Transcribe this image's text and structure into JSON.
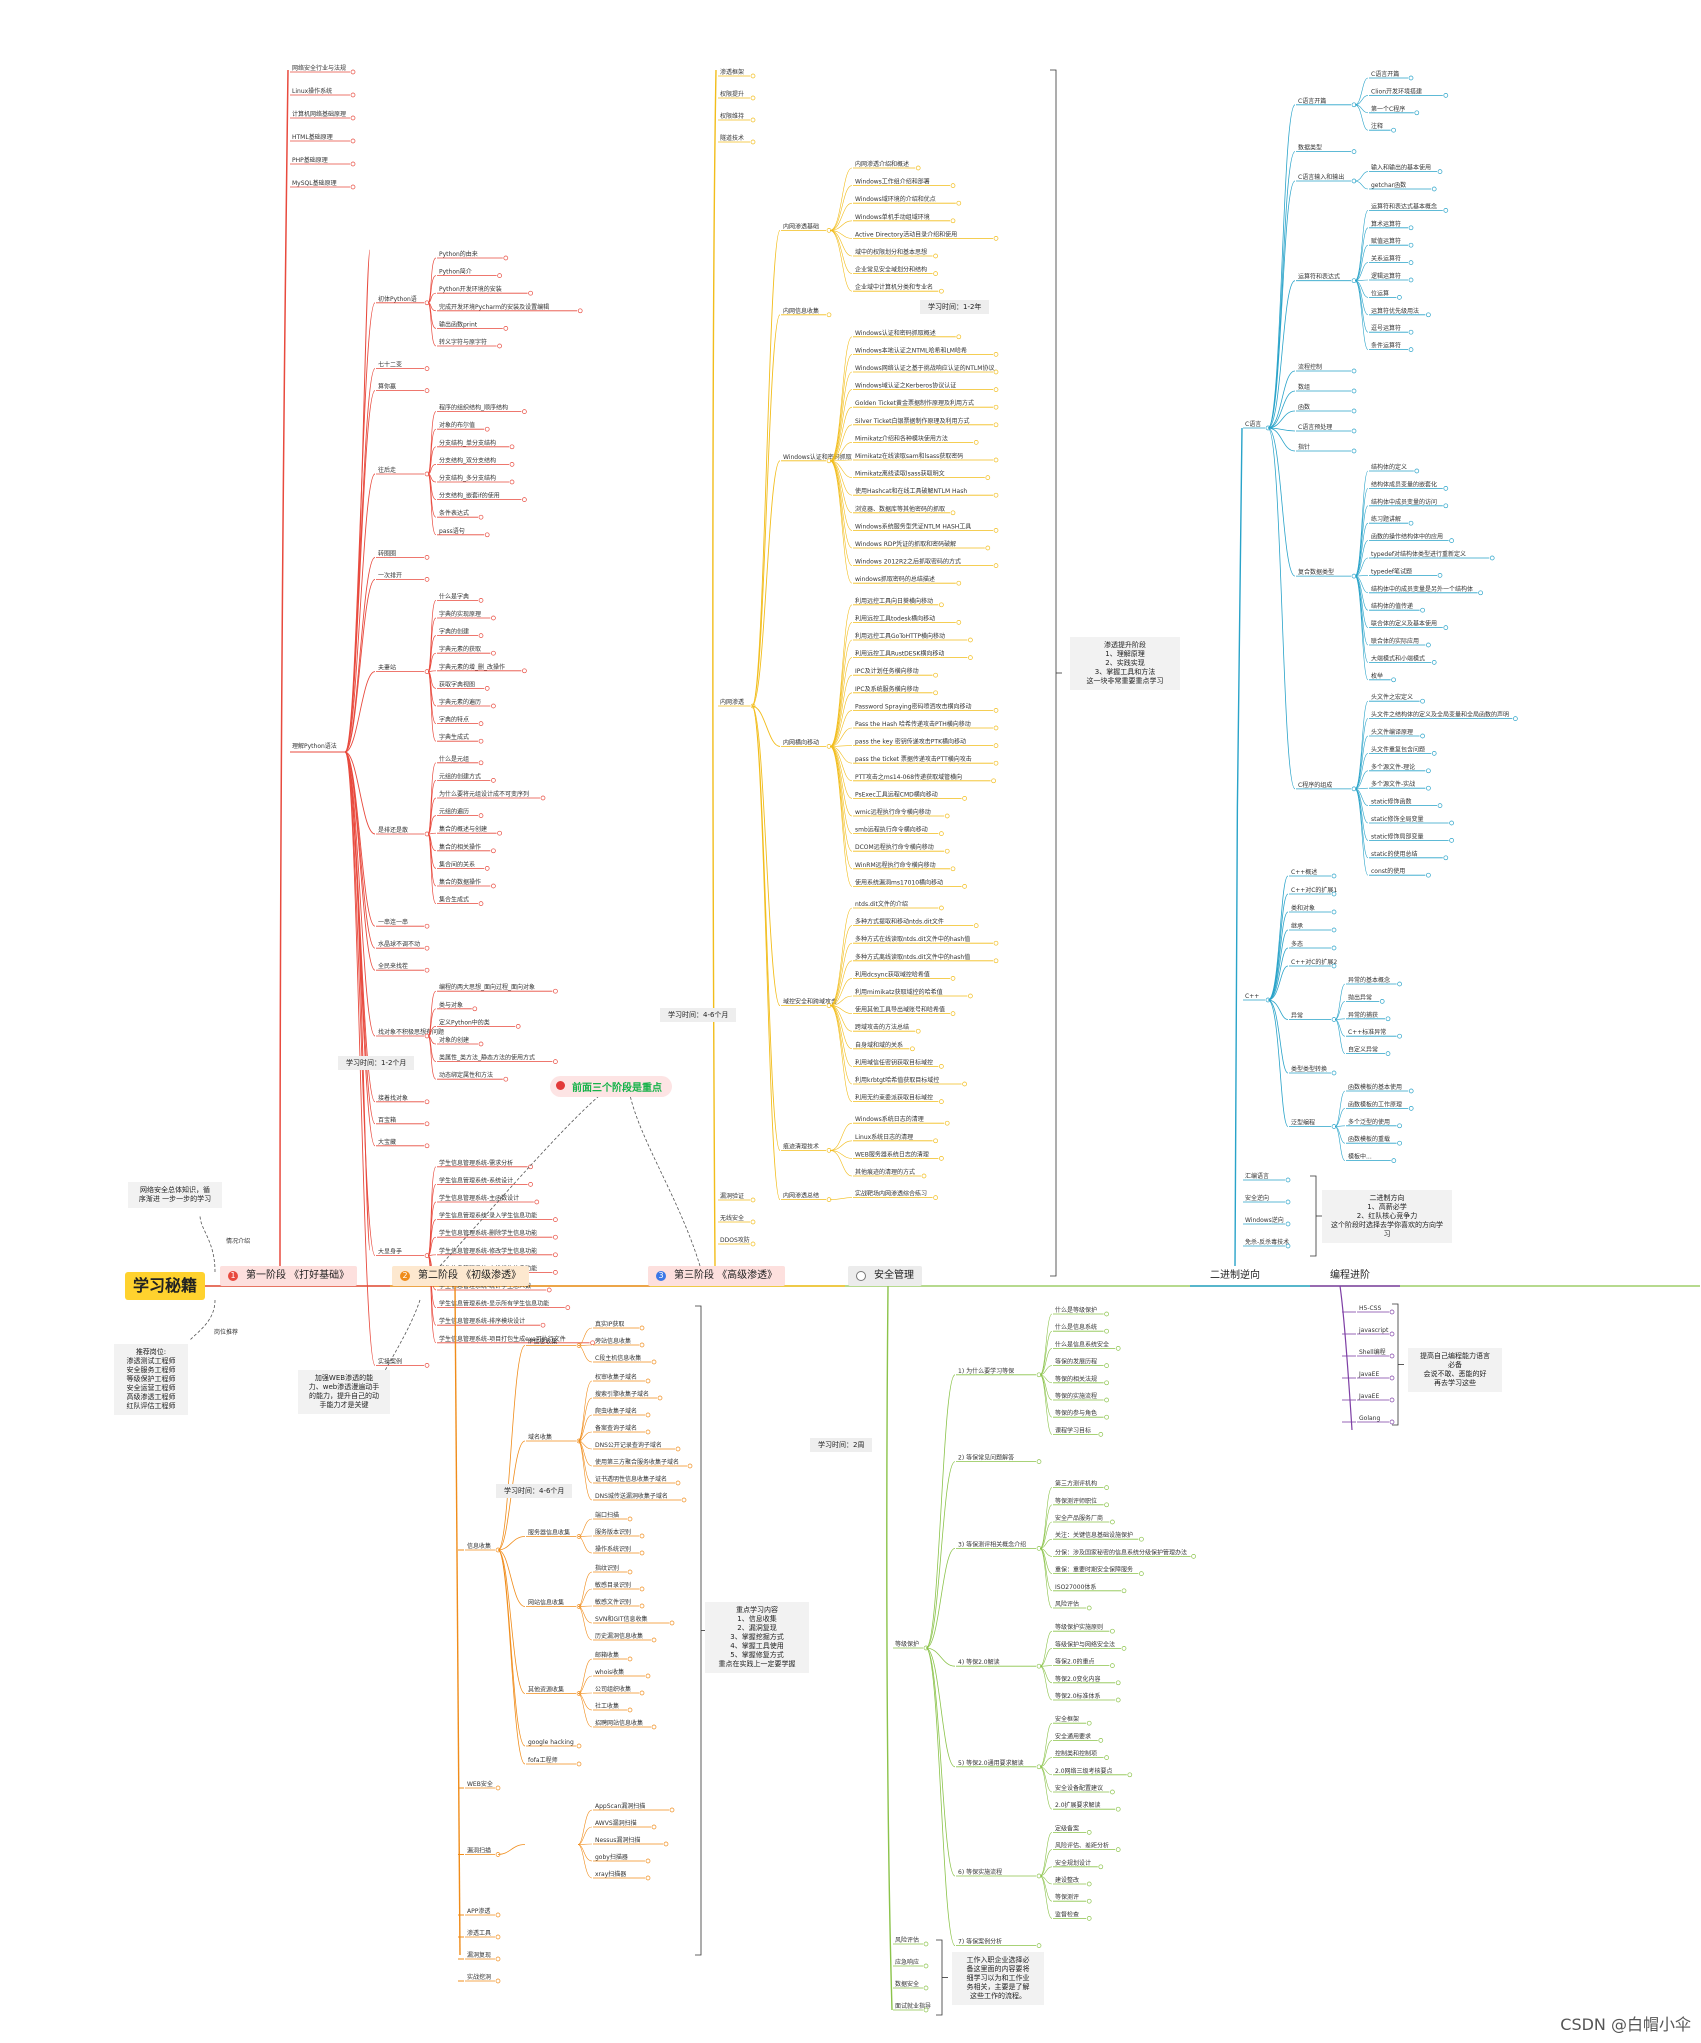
{
  "root": "学习秘籍",
  "watermark": "CSDN @白帽小伞",
  "left_notes": {
    "intro_label": "情况介绍",
    "intro": "网络安全总体知识，循\n序渐进 一步一步的学习",
    "jobs_label": "岗位推荐",
    "jobs": "推荐岗位:\n渗透测试工程师\n安全服务工程师\n等级保护工程师\n安全运营工程师\n高级渗透工程师\n红队评估工程师"
  },
  "stages": [
    {
      "num": "1",
      "label": "第一阶段 《打好基础》",
      "color": "#e84a3e",
      "bg": "#fde0de"
    },
    {
      "num": "2",
      "label": "第二阶段 《初级渗透》",
      "color": "#f08c1a",
      "bg": "#fde8cf"
    },
    {
      "num": "3",
      "label": "第三阶段 《高级渗透》",
      "color": "#f2bd1b",
      "bg": "#fde0de"
    },
    {
      "num": "",
      "label": "安全管理",
      "color": "#8bc34a",
      "bg": "#ececec"
    },
    {
      "num": "",
      "label": "二进制逆向",
      "color": "#29a3c9",
      "bg": ""
    },
    {
      "num": "",
      "label": "编程进阶",
      "color": "#7e3fa5",
      "bg": ""
    }
  ],
  "highlight": "前面三个阶段是重点",
  "time_notes": {
    "stage1": "学习时间：1-2个月",
    "stage2": "学习时间：4-6个月",
    "stage3a": "学习时间：1-2年",
    "stage3b": "学习时间：4-6个月",
    "mgmt": "学习时间：2周"
  },
  "boxes": {
    "stage2_note": "加强WEB渗透的能\n力、web渗透漫遍动手\n的能力，提升自己的动\n手能力才是关键",
    "stage2_focus": "重点学习内容\n1、信息收集\n2、漏洞复现\n3、掌握挖掘方式\n4、掌握工具使用\n5、掌握修复方式\n重点在实践上一定要学握",
    "stage3_focus": "渗透提升阶段\n1、理解原理\n2、实践实现\n3、掌握工具和方法\n这一块非常重要重点学习",
    "bin_focus": "二进制方向\n1、高薪必学\n2、红队核心竞争力\n这个阶段时选择去学你喜欢的方向学习",
    "prog_focus": "提高自己编程能力语言\n必备\n会说不敢、恶能的好\n再去学习这些",
    "mgmt_note": "工作入职企业选择必\n备这里面的内容要将\n细学习以为和工作业\n务相关，主要是了解\n这些工作的流程。"
  },
  "tree1": {
    "top": [
      "网络安全行业与法规",
      "Linux操作系统",
      "计算机网络基础原理",
      "HTML基础原理",
      "PHP基础原理",
      "MySQL基础原理"
    ],
    "python_label": "理解Python语法",
    "groups": [
      {
        "label": "初体Python语",
        "items": [
          "Python的由来",
          "Python简介",
          "Python开发环境的安装",
          "完成开发环境Pycharm的安装及设置编辑",
          "输出函数print",
          "转义字符与原字符"
        ]
      },
      {
        "label": "七十二变",
        "items": []
      },
      {
        "label": "算你赢",
        "items": []
      },
      {
        "label": "往后走",
        "items": [
          "程序的组织结构_顺序结构",
          "对象的布尔值",
          "分支结构_单分支结构",
          "分支结构_双分支结构",
          "分支结构_多分支结构",
          "分支结构_嵌套if的使用",
          "条件表达式",
          "pass语句"
        ]
      },
      {
        "label": "转圈圈",
        "items": []
      },
      {
        "label": "一次排开",
        "items": []
      },
      {
        "label": "夫妻站",
        "items": [
          "什么是字典",
          "字典的实现原理",
          "字典的创建",
          "字典元素的获取",
          "字典元素的增_删_改操作",
          "获取字典视图",
          "字典元素的遍历",
          "字典的特点",
          "字典生成式"
        ]
      },
      {
        "label": "是排还是散",
        "items": [
          "什么是元组",
          "元组的创建方式",
          "为什么要将元组设计成不可变序列",
          "元组的遍历",
          "集合的概述与创建",
          "集合的相关操作",
          "集合间的关系",
          "集合的数据操作",
          "集合生成式"
        ]
      },
      {
        "label": "一串连一串",
        "items": []
      },
      {
        "label": "水晶球不调不动",
        "items": []
      },
      {
        "label": "全民来找茬",
        "items": []
      },
      {
        "label": "找对象不积极思想有问题",
        "items": [
          "编程的两大思想_面向过程_面向对象",
          "类与对象",
          "定义Python中的类",
          "对象的创建",
          "类属性_类方法_静态方法的使用方式",
          "动态绑定属性和方法"
        ]
      },
      {
        "label": "接着找对象",
        "items": []
      },
      {
        "label": "百宝箱",
        "items": []
      },
      {
        "label": "大宝藏",
        "items": []
      },
      {
        "label": "大显身手",
        "items": [
          "学生信息管理系统-需求分析",
          "学生信息管理系统-系统设计",
          "学生信息管理系统-主函数设计",
          "学生信息管理系统-录入学生信息功能",
          "学生信息管理系统-删除学生信息功能",
          "学生信息管理系统-修改学生信息功能",
          "学生信息管理系统-查找学生信息功能",
          "学生信息管理系统-统计学生总人数",
          "学生信息管理系统-显示所有学生信息功能",
          "学生信息管理系统-排序模块设计",
          "学生信息管理系统-项目打包生成exe可执行文件"
        ]
      },
      {
        "label": "实操案例",
        "items": []
      }
    ]
  },
  "tree2": {
    "groups": [
      {
        "label": "信息收集",
        "subs": [
          {
            "label": "IP信息收集",
            "items": [
              "真实IP获取",
              "旁站信息收集",
              "C段主机信息收集"
            ]
          },
          {
            "label": "域名收集",
            "items": [
              "权审收集子域名",
              "搜索引擎收集子域名",
              "爬虫收集子域名",
              "备案查询子域名",
              "DNS公开记录查询子域名",
              "使用第三方聚合服务收集子域名",
              "证书透明性信息收集子域名",
              "DNS城传送漏洞收集子域名"
            ]
          },
          {
            "label": "服务器信息收集",
            "items": [
              "端口扫描",
              "服务版本识别",
              "操作系统识别"
            ]
          },
          {
            "label": "网站信息收集",
            "items": [
              "指纹识别",
              "敏感目录识别",
              "敏感文件识别",
              "SVN和GIT信息收集",
              "历史漏洞信息收集"
            ]
          },
          {
            "label": "其他资源收集",
            "items": [
              "邮箱收集",
              "whois收集",
              "公司组织收集",
              "社工收集",
              "招聘网站信息收集"
            ]
          },
          {
            "label": "google hacking",
            "items": []
          },
          {
            "label": "fofa工程师",
            "items": []
          }
        ]
      },
      {
        "label": "WEB安全",
        "subs": []
      },
      {
        "label": "漏洞扫描",
        "subs": [
          {
            "label": "",
            "items": [
              "AppScan漏洞扫描",
              "AWVS漏洞扫描",
              "Nessus漏洞扫描",
              "goby扫描器",
              "xray扫描器"
            ]
          }
        ]
      },
      {
        "label": "APP渗透",
        "subs": []
      },
      {
        "label": "渗透工具",
        "subs": []
      },
      {
        "label": "漏洞复现",
        "subs": []
      },
      {
        "label": "实战挖洞",
        "subs": []
      }
    ]
  },
  "tree3": {
    "top": [
      "渗透框架",
      "权限提升",
      "权限维持",
      "隧道技术"
    ],
    "intranet_label": "内网渗透",
    "groups": [
      {
        "label": "内网渗透基础",
        "items": [
          "内网渗透介绍和概述",
          "Windows工作组介绍和部署",
          "Windows域环境的介绍和优点",
          "Windows单机手动组域环境",
          "Active Directory活动目录介绍和使用",
          "域中的权限划分和基本思想",
          "企业常见安全域划分和结构",
          "企业域中计算机分类和专业名"
        ]
      },
      {
        "label": "内网信息收集",
        "items": []
      },
      {
        "label": "Windows认证和密码抓取",
        "items": [
          "Windows认证和密码抓取概述",
          "Windows本地认证之NTML哈希和LM哈希",
          "Windows网络认证之基于挑战响应认证的NTLM协议",
          "Windows域认证之Kerberos协议认证",
          "Golden Ticket黄金票据制作原理及利用方式",
          "Silver Ticket白银票据制作原理及利用方式",
          "Mimikatz介绍和各种模块使用方法",
          "Mimikatz在线读取sam和lsass获取密码",
          "Mimikatz离线读取lsass获取明文",
          "使用Hashcat和在线工具破解NTLM Hash",
          "浏览器、数据库等其他密码的抓取",
          "Windows系统服务型凭证NTLM HASH工具",
          "Windows RDP凭证的抓取和密码破解",
          "Windows 2012R2之后抓取密码的方式",
          "windows抓取密码的总结描述"
        ]
      },
      {
        "label": "内网横向移动",
        "items": [
          "利用远控工具向日葵横向移动",
          "利用远控工具todesk横向移动",
          "利用远控工具GoToHTTP横向移动",
          "利用远控工具RustDESK横向移动",
          "IPC及计划任务横向移动",
          "IPC及系统服务横向移动",
          "Password Spraying密码喷洒攻击横向移动",
          "Pass the Hash 哈希传递攻击PTH横向移动",
          "pass the key 密钥传递攻击PTK横向移动",
          "pass the ticket 票据传递攻击PTT横向攻击",
          "PTT攻击之ms14-068传递获取域管横向",
          "PsExec工具远程CMD横向移动",
          "wmic远程执行命令横向移动",
          "smb远程执行命令横向移动",
          "DCOM远程执行命令横向移动",
          "WinRM远程执行命令横向移动",
          "使用系统漏洞ms17010横向移动"
        ]
      },
      {
        "label": "域控安全和跨域攻击",
        "items": [
          "ntds.dit文件的介绍",
          "多种方式提取和移动ntds.dit文件",
          "多种方式在线读取ntds.dit文件中的hash值",
          "多种方式离线读取ntds.dit文件中的hash值",
          "利用dcsync获取域控哈希值",
          "利用mimikatz获取域控的哈希值",
          "使用其他工具导出域账号和哈希值",
          "跨域攻击的方法总结",
          "自身域和域的关系",
          "利用域信任密钥获取目标域控",
          "利用krbtgt哈希值获取目标域控",
          "利用无约束委派获取目标域控"
        ]
      },
      {
        "label": "痕迹清理技术",
        "items": [
          "Windows系统日志的清理",
          "Linux系统日志的清理",
          "WEB服务器系统日志的清理",
          "其他痕迹的清理的方式"
        ]
      },
      {
        "label": "内网渗透总结",
        "items": [
          "实战靶场内网渗透综合练习"
        ]
      }
    ],
    "bottom": [
      "漏洞验证",
      "无线安全",
      "DDOS攻防"
    ]
  },
  "tree4": {
    "groups": [
      {
        "label": "1) 为什么要学习等保",
        "items": [
          "什么是等级保护",
          "什么是信息系统",
          "什么是信息系统安全",
          "等保的发展历程",
          "等保的相关法规",
          "等保的实施流程",
          "等保的参与角色",
          "课程学习目标"
        ]
      },
      {
        "label": "2) 等保常见问题解答",
        "items": []
      },
      {
        "label": "3) 等保测评相关概念介绍",
        "items": [
          "第三方测评机构",
          "等保测评师职位",
          "安全产品服务厂商",
          "关注：关键信息基础设施保护",
          "分保：涉及国家秘密的信息系统分级保护管理办法",
          "重保：重要时期安全保障服务",
          "ISO27000体系",
          "风险评估"
        ]
      },
      {
        "label": "4) 等保2.0解读",
        "items": [
          "等级保护实施原则",
          "等级保护与网络安全法",
          "等保2.0的重点",
          "等保2.0变化内容",
          "等保2.0标准体系"
        ]
      },
      {
        "label": "5) 等保2.0通用要求解读",
        "items": [
          "安全框架",
          "安全通用要求",
          "控制类和控制项",
          "2.0网络三级考核要点",
          "安全设备配置建议",
          "2.0扩展要求解读"
        ]
      },
      {
        "label": "6) 等保实施流程",
        "items": [
          "定级备案",
          "风险评估、差距分析",
          "安全规划设计",
          "建设整改",
          "等保测评",
          "监督检查"
        ]
      },
      {
        "label": "7) 等保案例分析",
        "items": []
      }
    ],
    "level_label": "等级保护",
    "bottom": [
      "风险评估",
      "应急响应",
      "数据安全",
      "面试就业指导"
    ]
  },
  "tree5": {
    "c_label": "C语言",
    "c_groups": [
      {
        "label": "C语言开篇",
        "items": [
          "C语言开篇",
          "Clion开发环境搭建",
          "第一个C程序",
          "注释"
        ]
      },
      {
        "label": "数据类型",
        "items": []
      },
      {
        "label": "C语言输入和输出",
        "items": [
          "输入和输出的基本使用",
          "getchar函数"
        ]
      },
      {
        "label": "运算符和表达式",
        "items": [
          "运算符和表达式基本概念",
          "算术运算符",
          "赋值运算符",
          "关系运算符",
          "逻辑运算符",
          "位运算",
          "运算符优先级用法",
          "逗号运算符",
          "条件运算符"
        ]
      },
      {
        "label": "流程控制",
        "items": []
      },
      {
        "label": "数组",
        "items": []
      },
      {
        "label": "函数",
        "items": []
      },
      {
        "label": "C语言预处理",
        "items": []
      },
      {
        "label": "指针",
        "items": []
      },
      {
        "label": "复合数据类型",
        "items": [
          "结构体的定义",
          "结构体成员变量的嵌套化",
          "结构体中成员变量的访问",
          "练习题讲解",
          "函数的操作结构体中的应用",
          "typedef对结构体类型进行重新定义",
          "typedef笔试题",
          "结构体中的成员变量是另外一个结构体",
          "结构体的值传递",
          "联合体的定义及基本使用",
          "联合体的实际应用",
          "大端模式和小端模式",
          "枚举"
        ]
      },
      {
        "label": "C程序的组成",
        "items": [
          "头文件之宏定义",
          "头文件之结构体的定义及全局变量和全局函数的声明",
          "头文件编译原理",
          "头文件重复包含问题",
          "多个源文件-理论",
          "多个源文件-实战",
          "static修饰函数",
          "static修饰全局变量",
          "static修饰局部变量",
          "static的使用总结",
          "const的使用"
        ]
      }
    ],
    "cpp_label": "C++",
    "cpp_groups": [
      {
        "label": "C++概述",
        "items": []
      },
      {
        "label": "C++对C的扩展1",
        "items": []
      },
      {
        "label": "类和对象",
        "items": []
      },
      {
        "label": "继承",
        "items": []
      },
      {
        "label": "多态",
        "items": []
      },
      {
        "label": "C++对C的扩展2",
        "items": []
      },
      {
        "label": "异常",
        "items": [
          "异常的基本概念",
          "抛出异常",
          "异常的捕获",
          "C++标准异常",
          "自定义异常"
        ]
      },
      {
        "label": "类型类型转换",
        "items": []
      },
      {
        "label": "泛型编程",
        "items": [
          "函数模板的基本使用",
          "函数模板的工作原理",
          "多个泛型的使用",
          "函数模板的重载",
          "模板中..."
        ]
      }
    ],
    "bottom": [
      "汇编语言",
      "安全逆向",
      "Windows逆向",
      "免杀-反杀毒技术"
    ]
  },
  "tree6": {
    "items": [
      "H5-CSS",
      "javascript",
      "Shell编程",
      "JavaEE",
      "JavaEE",
      "Golang"
    ]
  }
}
